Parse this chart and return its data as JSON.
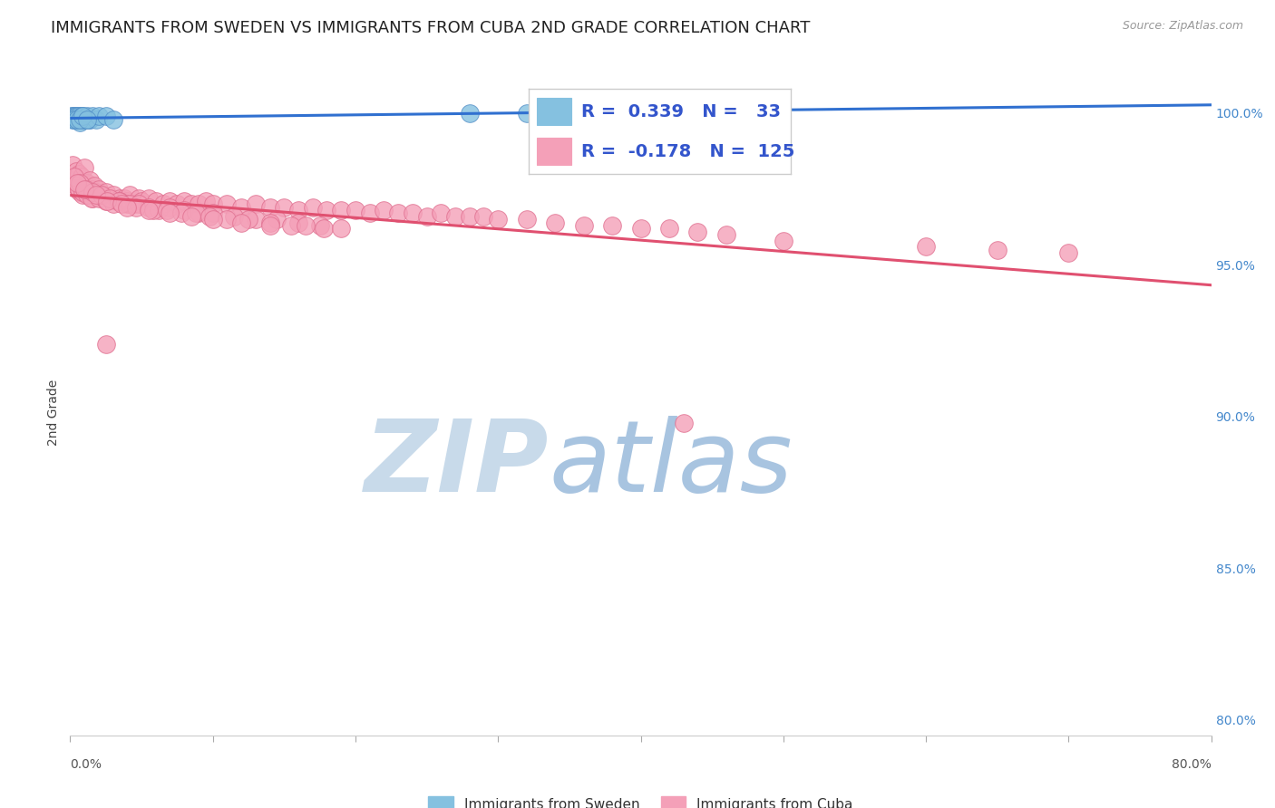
{
  "title": "IMMIGRANTS FROM SWEDEN VS IMMIGRANTS FROM CUBA 2ND GRADE CORRELATION CHART",
  "source": "Source: ZipAtlas.com",
  "ylabel": "2nd Grade",
  "ylabel_right_ticks": [
    "100.0%",
    "95.0%",
    "90.0%",
    "85.0%",
    "80.0%"
  ],
  "ylabel_right_vals": [
    1.0,
    0.95,
    0.9,
    0.85,
    0.8
  ],
  "xlim": [
    0.0,
    0.8
  ],
  "ylim": [
    0.795,
    1.008
  ],
  "sweden_R": 0.339,
  "sweden_N": 33,
  "cuba_R": -0.178,
  "cuba_N": 125,
  "sweden_color": "#85c1e0",
  "cuba_color": "#f4a0b8",
  "sweden_edge": "#5590c8",
  "cuba_edge": "#e07090",
  "trend_sweden_color": "#3070d0",
  "trend_cuba_color": "#e05070",
  "watermark_zip": "ZIP",
  "watermark_atlas": "atlas",
  "watermark_color_zip": "#c5d8f0",
  "watermark_color_atlas": "#a8c8e8",
  "legend_text_color": "#3355cc",
  "background_color": "#ffffff",
  "grid_color": "#e0e0e0",
  "title_fontsize": 13,
  "axis_label_fontsize": 10,
  "tick_fontsize": 10,
  "legend_fontsize": 14,
  "sweden_points_x": [
    0.001,
    0.002,
    0.002,
    0.003,
    0.003,
    0.004,
    0.004,
    0.005,
    0.005,
    0.006,
    0.006,
    0.007,
    0.007,
    0.008,
    0.008,
    0.009,
    0.01,
    0.011,
    0.012,
    0.013,
    0.014,
    0.016,
    0.018,
    0.02,
    0.025,
    0.03,
    0.003,
    0.005,
    0.007,
    0.009,
    0.012,
    0.28,
    0.32
  ],
  "sweden_points_y": [
    0.999,
    0.999,
    0.998,
    0.999,
    0.998,
    0.999,
    0.998,
    0.999,
    0.998,
    0.999,
    0.998,
    0.998,
    0.997,
    0.999,
    0.998,
    0.999,
    0.998,
    0.998,
    0.999,
    0.998,
    0.998,
    0.999,
    0.998,
    0.999,
    0.999,
    0.998,
    0.998,
    0.998,
    0.998,
    0.999,
    0.998,
    1.0,
    1.0
  ],
  "cuba_points_x": [
    0.002,
    0.003,
    0.004,
    0.005,
    0.006,
    0.007,
    0.008,
    0.009,
    0.01,
    0.011,
    0.012,
    0.013,
    0.014,
    0.015,
    0.016,
    0.017,
    0.018,
    0.019,
    0.02,
    0.022,
    0.025,
    0.028,
    0.03,
    0.033,
    0.035,
    0.038,
    0.04,
    0.042,
    0.045,
    0.048,
    0.05,
    0.055,
    0.06,
    0.065,
    0.07,
    0.075,
    0.08,
    0.085,
    0.09,
    0.095,
    0.1,
    0.11,
    0.12,
    0.13,
    0.14,
    0.15,
    0.16,
    0.17,
    0.18,
    0.19,
    0.2,
    0.21,
    0.22,
    0.23,
    0.24,
    0.25,
    0.26,
    0.27,
    0.28,
    0.29,
    0.3,
    0.32,
    0.34,
    0.36,
    0.38,
    0.4,
    0.42,
    0.44,
    0.46,
    0.5,
    0.004,
    0.006,
    0.009,
    0.012,
    0.015,
    0.02,
    0.025,
    0.03,
    0.035,
    0.04,
    0.003,
    0.007,
    0.011,
    0.016,
    0.022,
    0.028,
    0.034,
    0.042,
    0.048,
    0.055,
    0.062,
    0.07,
    0.08,
    0.09,
    0.1,
    0.115,
    0.13,
    0.145,
    0.16,
    0.175,
    0.005,
    0.01,
    0.018,
    0.026,
    0.036,
    0.046,
    0.058,
    0.068,
    0.078,
    0.088,
    0.098,
    0.11,
    0.125,
    0.14,
    0.155,
    0.165,
    0.178,
    0.19,
    0.04,
    0.055,
    0.07,
    0.085,
    0.1,
    0.12,
    0.14,
    0.6,
    0.65,
    0.7,
    0.025,
    0.43
  ],
  "cuba_points_y": [
    0.983,
    0.978,
    0.981,
    0.975,
    0.98,
    0.974,
    0.979,
    0.973,
    0.982,
    0.976,
    0.977,
    0.974,
    0.978,
    0.975,
    0.972,
    0.976,
    0.974,
    0.973,
    0.975,
    0.973,
    0.974,
    0.972,
    0.973,
    0.971,
    0.972,
    0.972,
    0.971,
    0.973,
    0.97,
    0.972,
    0.971,
    0.972,
    0.971,
    0.97,
    0.971,
    0.97,
    0.971,
    0.97,
    0.97,
    0.971,
    0.97,
    0.97,
    0.969,
    0.97,
    0.969,
    0.969,
    0.968,
    0.969,
    0.968,
    0.968,
    0.968,
    0.967,
    0.968,
    0.967,
    0.967,
    0.966,
    0.967,
    0.966,
    0.966,
    0.966,
    0.965,
    0.965,
    0.964,
    0.963,
    0.963,
    0.962,
    0.962,
    0.961,
    0.96,
    0.958,
    0.976,
    0.975,
    0.974,
    0.973,
    0.972,
    0.972,
    0.971,
    0.97,
    0.971,
    0.97,
    0.979,
    0.977,
    0.975,
    0.974,
    0.973,
    0.972,
    0.971,
    0.97,
    0.97,
    0.969,
    0.968,
    0.969,
    0.968,
    0.967,
    0.967,
    0.966,
    0.965,
    0.965,
    0.964,
    0.963,
    0.977,
    0.975,
    0.973,
    0.971,
    0.97,
    0.969,
    0.968,
    0.968,
    0.967,
    0.967,
    0.966,
    0.965,
    0.965,
    0.964,
    0.963,
    0.963,
    0.962,
    0.962,
    0.969,
    0.968,
    0.967,
    0.966,
    0.965,
    0.964,
    0.963,
    0.956,
    0.955,
    0.954,
    0.924,
    0.898
  ]
}
